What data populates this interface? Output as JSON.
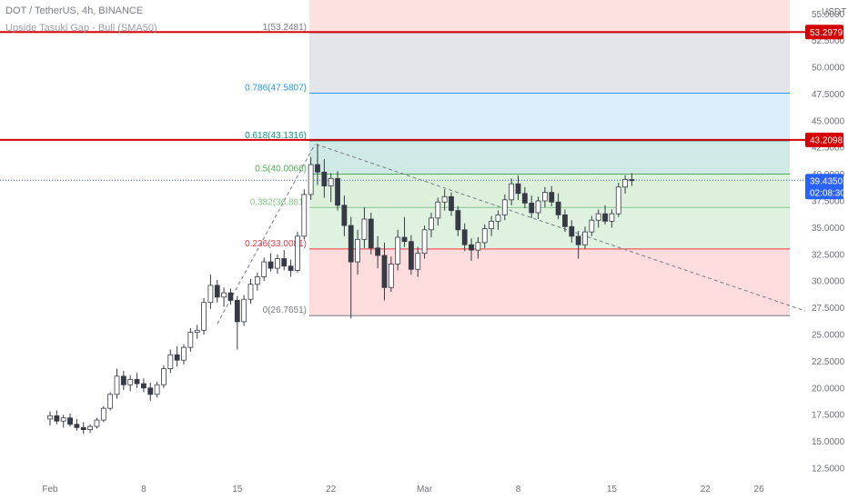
{
  "header": {
    "symbol_line": "DOT / TetherUS, 4h, BINANCE",
    "indicator_line": "Upside Tasuki Gap - Bull (SMA50)"
  },
  "chart_data": {
    "type": "candlestick",
    "currency_label": "USDT",
    "y_axis_ticks": [
      "12.5000",
      "15.0000",
      "17.5000",
      "20.0000",
      "22.5000",
      "25.0000",
      "27.5000",
      "30.0000",
      "32.5000",
      "35.0000",
      "37.5000",
      "40.0000",
      "42.5000",
      "45.0000",
      "47.5000",
      "50.0000",
      "52.5000",
      "55.0000"
    ],
    "y_axis_values": [
      12.5,
      15,
      17.5,
      20,
      22.5,
      25,
      27.5,
      30,
      32.5,
      35,
      37.5,
      40,
      42.5,
      45,
      47.5,
      50,
      52.5,
      55
    ],
    "ylim": [
      11.9,
      56.3
    ],
    "x_axis_ticks": [
      {
        "label": "Feb",
        "day": 0
      },
      {
        "label": "8",
        "day": 7
      },
      {
        "label": "15",
        "day": 14
      },
      {
        "label": "22",
        "day": 21
      },
      {
        "label": "Mar",
        "day": 28
      },
      {
        "label": "8",
        "day": 35
      },
      {
        "label": "15",
        "day": 42
      },
      {
        "label": "22",
        "day": 49
      },
      {
        "label": "26",
        "day": 53
      }
    ],
    "fib_levels": [
      {
        "ratio": "1",
        "price": "53.2481",
        "value": 53.2481,
        "color": "#787b86",
        "fill": "#fde0e0"
      },
      {
        "ratio": "0.786",
        "price": "47.5807",
        "value": 47.5807,
        "color": "#2196f3",
        "fill": "#e3e5ea"
      },
      {
        "ratio": "0.618",
        "price": "43.1316",
        "value": 43.1316,
        "color": "#089981",
        "fill": "#dcedfb"
      },
      {
        "ratio": "0.5",
        "price": "40.0066",
        "value": 40.0066,
        "color": "#4caf50",
        "fill": "#cfe9e4"
      },
      {
        "ratio": "0.382",
        "price": "36.881",
        "value": 36.881,
        "color": "#81c784",
        "fill": "#dcf0dc"
      },
      {
        "ratio": "0.236",
        "price": "33.0081",
        "value": 33.0081,
        "color": "#f23645",
        "fill": "#dff1df"
      },
      {
        "ratio": "0",
        "price": "26.7651",
        "value": 26.7651,
        "color": "#787b86",
        "fill": "#fcdcdc"
      }
    ],
    "horizontal_lines": [
      {
        "label": "53.2979",
        "value": 53.2979,
        "color": "#d50000"
      },
      {
        "label": "43.2098",
        "value": 43.2098,
        "color": "#d50000"
      }
    ],
    "last_price": {
      "label": "39.4350",
      "countdown": "02:08:30",
      "value": 39.435,
      "color": "#2962ff"
    },
    "trendlines": [
      {
        "from_day": 12.5,
        "from": 26.0,
        "to_day": 19.8,
        "to": 42.8
      },
      {
        "from_day": 19.9,
        "from": 42.8,
        "to_day": 57.5,
        "to": 26.7651
      }
    ],
    "ohlc_key": [
      "day",
      "open",
      "high",
      "low",
      "close"
    ],
    "candles": [
      [
        0.0,
        17.1,
        17.8,
        16.5,
        17.4
      ],
      [
        0.5,
        17.4,
        17.9,
        16.6,
        16.9
      ],
      [
        1.0,
        16.9,
        17.5,
        16.3,
        17.2
      ],
      [
        1.5,
        17.2,
        17.6,
        16.4,
        16.6
      ],
      [
        2.0,
        16.6,
        17.1,
        16.0,
        16.3
      ],
      [
        2.5,
        16.3,
        16.8,
        15.7,
        16.1
      ],
      [
        3.0,
        16.1,
        16.6,
        15.8,
        16.4
      ],
      [
        3.5,
        16.4,
        17.2,
        16.2,
        17.0
      ],
      [
        4.0,
        17.0,
        18.3,
        16.8,
        18.1
      ],
      [
        4.5,
        18.1,
        19.6,
        17.9,
        19.4
      ],
      [
        5.0,
        19.4,
        21.8,
        19.0,
        21.1
      ],
      [
        5.5,
        21.1,
        21.6,
        19.8,
        20.3
      ],
      [
        6.0,
        20.3,
        21.2,
        19.7,
        20.8
      ],
      [
        6.5,
        20.8,
        21.4,
        20.0,
        20.4
      ],
      [
        7.0,
        20.4,
        20.9,
        19.6,
        20.0
      ],
      [
        7.5,
        20.0,
        20.5,
        18.8,
        19.4
      ],
      [
        8.0,
        19.4,
        20.6,
        19.1,
        20.3
      ],
      [
        8.5,
        20.3,
        22.1,
        20.0,
        21.8
      ],
      [
        9.0,
        21.8,
        23.6,
        21.4,
        23.1
      ],
      [
        9.5,
        23.1,
        23.9,
        22.0,
        22.6
      ],
      [
        10.0,
        22.6,
        24.1,
        22.2,
        23.8
      ],
      [
        10.5,
        23.8,
        25.6,
        23.4,
        25.2
      ],
      [
        11.0,
        25.2,
        25.9,
        24.6,
        25.4
      ],
      [
        11.5,
        25.4,
        28.4,
        25.0,
        28.0
      ],
      [
        12.0,
        28.0,
        30.6,
        27.4,
        29.6
      ],
      [
        12.5,
        29.6,
        30.1,
        28.0,
        28.5
      ],
      [
        13.0,
        28.5,
        29.4,
        27.6,
        28.9
      ],
      [
        13.5,
        28.9,
        29.3,
        27.8,
        28.2
      ],
      [
        14.0,
        28.2,
        28.6,
        23.6,
        26.2
      ],
      [
        14.5,
        26.2,
        28.7,
        25.8,
        28.3
      ],
      [
        15.0,
        28.3,
        30.2,
        27.9,
        29.7
      ],
      [
        15.5,
        29.7,
        30.8,
        29.1,
        30.4
      ],
      [
        16.0,
        30.4,
        32.2,
        30.0,
        31.8
      ],
      [
        16.5,
        31.8,
        32.6,
        30.9,
        31.2
      ],
      [
        17.0,
        31.2,
        32.5,
        30.7,
        32.1
      ],
      [
        17.5,
        32.1,
        32.9,
        31.0,
        31.4
      ],
      [
        18.0,
        31.4,
        32.0,
        30.4,
        31.0
      ],
      [
        18.5,
        31.0,
        34.6,
        30.8,
        34.2
      ],
      [
        19.0,
        34.2,
        38.6,
        33.9,
        38.1
      ],
      [
        19.5,
        38.1,
        41.6,
        37.6,
        40.9
      ],
      [
        20.0,
        40.9,
        42.8,
        39.0,
        40.2
      ],
      [
        20.5,
        40.2,
        41.4,
        37.8,
        38.9
      ],
      [
        21.0,
        38.9,
        40.1,
        37.4,
        39.6
      ],
      [
        21.5,
        39.6,
        40.3,
        36.6,
        37.1
      ],
      [
        22.0,
        37.1,
        38.0,
        34.2,
        35.2
      ],
      [
        22.5,
        35.2,
        36.0,
        26.5,
        31.8
      ],
      [
        23.0,
        31.8,
        34.8,
        30.6,
        33.9
      ],
      [
        23.5,
        33.9,
        36.9,
        33.1,
        35.8
      ],
      [
        24.0,
        35.8,
        36.4,
        32.5,
        33.1
      ],
      [
        24.5,
        33.1,
        34.2,
        31.2,
        32.4
      ],
      [
        25.0,
        32.4,
        33.6,
        28.2,
        29.4
      ],
      [
        25.5,
        29.4,
        32.3,
        29.0,
        31.6
      ],
      [
        26.0,
        31.6,
        34.8,
        31.0,
        34.1
      ],
      [
        26.5,
        34.1,
        36.0,
        33.2,
        33.7
      ],
      [
        27.0,
        33.7,
        34.3,
        30.6,
        31.1
      ],
      [
        27.5,
        31.1,
        33.2,
        30.4,
        32.6
      ],
      [
        28.0,
        32.6,
        35.2,
        32.1,
        34.8
      ],
      [
        28.5,
        34.8,
        36.4,
        34.1,
        35.9
      ],
      [
        29.0,
        35.9,
        37.8,
        35.2,
        37.4
      ],
      [
        29.5,
        37.4,
        38.6,
        36.6,
        37.9
      ],
      [
        30.0,
        37.9,
        38.3,
        36.1,
        36.6
      ],
      [
        30.5,
        36.6,
        37.0,
        34.2,
        34.8
      ],
      [
        31.0,
        34.8,
        35.4,
        32.8,
        33.4
      ],
      [
        31.5,
        33.4,
        34.0,
        31.9,
        32.9
      ],
      [
        32.0,
        32.9,
        34.1,
        32.1,
        33.6
      ],
      [
        32.5,
        33.6,
        35.3,
        33.1,
        34.9
      ],
      [
        33.0,
        34.9,
        36.1,
        34.2,
        35.6
      ],
      [
        33.5,
        35.6,
        36.6,
        34.8,
        36.2
      ],
      [
        34.0,
        36.2,
        38.1,
        35.7,
        37.6
      ],
      [
        34.5,
        37.6,
        39.6,
        37.1,
        39.1
      ],
      [
        35.0,
        39.1,
        39.9,
        37.6,
        38.2
      ],
      [
        35.5,
        38.2,
        38.8,
        36.8,
        37.3
      ],
      [
        36.0,
        37.3,
        38.0,
        35.9,
        36.4
      ],
      [
        36.5,
        36.4,
        37.9,
        35.8,
        37.5
      ],
      [
        37.0,
        37.5,
        38.8,
        36.9,
        38.3
      ],
      [
        37.5,
        38.3,
        38.9,
        37.0,
        37.4
      ],
      [
        38.0,
        37.4,
        38.2,
        35.8,
        36.2
      ],
      [
        38.5,
        36.2,
        36.7,
        34.6,
        35.1
      ],
      [
        39.0,
        35.1,
        35.7,
        33.6,
        34.2
      ],
      [
        39.5,
        34.2,
        34.7,
        32.1,
        33.4
      ],
      [
        40.0,
        33.4,
        35.1,
        33.0,
        34.6
      ],
      [
        40.5,
        34.6,
        36.1,
        34.2,
        35.7
      ],
      [
        41.0,
        35.7,
        36.7,
        35.0,
        36.3
      ],
      [
        41.5,
        36.3,
        37.1,
        35.3,
        35.6
      ],
      [
        42.0,
        35.6,
        36.7,
        35.0,
        36.3
      ],
      [
        42.5,
        36.3,
        39.2,
        36.0,
        38.8
      ],
      [
        43.0,
        38.8,
        39.9,
        38.2,
        39.5
      ],
      [
        43.5,
        39.5,
        40.1,
        38.9,
        39.4
      ]
    ]
  }
}
